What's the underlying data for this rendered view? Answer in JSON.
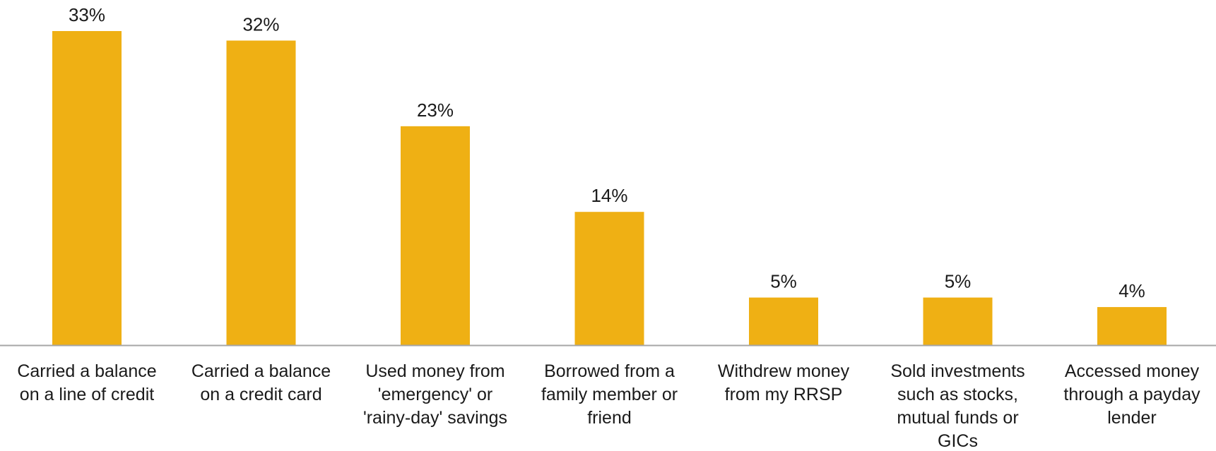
{
  "chart_data": {
    "type": "bar",
    "title": "",
    "xlabel": "",
    "ylabel": "",
    "ylim": [
      0,
      33
    ],
    "grid": false,
    "legend": "none",
    "bar_color": "#EFB014",
    "axis_color": "#a6a6a6",
    "value_format": "percent",
    "categories": [
      [
        "Carried a balance",
        "on a line of credit"
      ],
      [
        "Carried a balance",
        "on a credit card"
      ],
      [
        "Used money from",
        "'emergency' or",
        "'rainy-day' savings"
      ],
      [
        "Borrowed from a",
        "family member or",
        "friend"
      ],
      [
        "Withdrew money",
        "from my RRSP"
      ],
      [
        "Sold investments",
        "such as stocks,",
        "mutual funds or",
        "GICs"
      ],
      [
        "Accessed money",
        "through a payday",
        "lender"
      ]
    ],
    "values": [
      33,
      32,
      23,
      14,
      5,
      5,
      4
    ],
    "value_labels": [
      "33%",
      "32%",
      "23%",
      "14%",
      "5%",
      "5%",
      "4%"
    ]
  }
}
